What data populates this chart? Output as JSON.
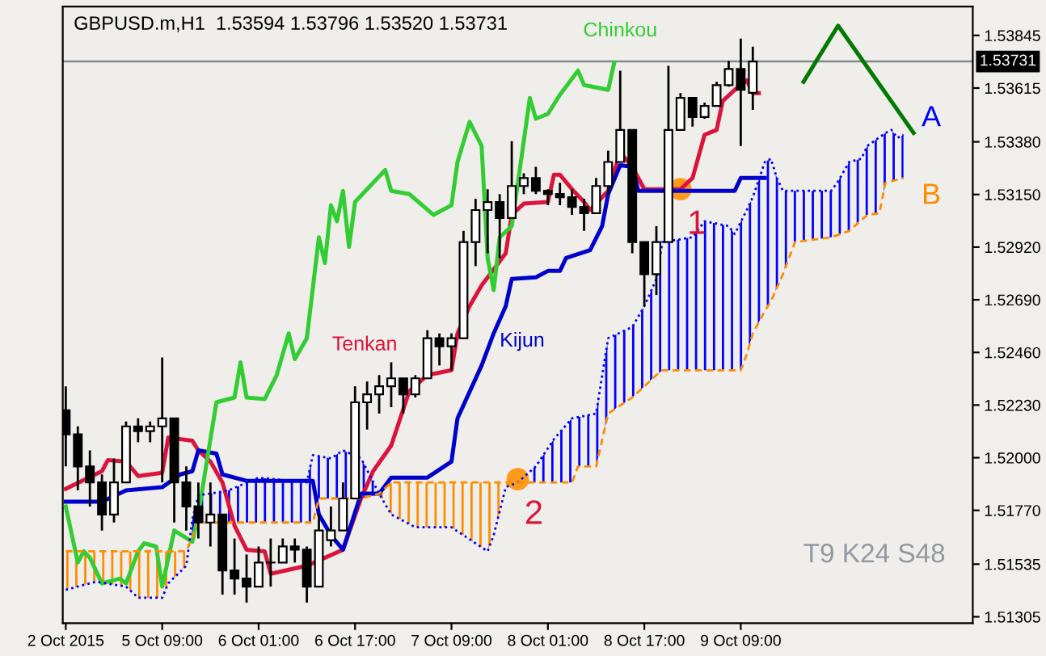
{
  "chart_data": {
    "type": "candlestick",
    "title": "GBPUSD.m,H1  1.53594 1.53796 1.53520 1.53731",
    "categories": [
      "2 Oct 2015",
      null,
      null,
      null,
      null,
      null,
      null,
      null,
      null,
      null,
      null,
      null,
      null,
      null,
      null,
      null,
      "5 Oct 09:00",
      null,
      null,
      null,
      null,
      null,
      null,
      null,
      null,
      null,
      null,
      null,
      null,
      null,
      null,
      null,
      "6 Oct 01:00",
      null,
      null,
      null,
      null,
      null,
      null,
      null,
      null,
      null,
      null,
      null,
      null,
      null,
      null,
      null,
      "6 Oct 17:00",
      null,
      null,
      null,
      null,
      null,
      null,
      null,
      null,
      null,
      null,
      null,
      null,
      null,
      null,
      null,
      "7 Oct 09:00",
      null,
      null,
      null,
      null,
      null,
      null,
      null,
      null,
      null,
      null,
      null,
      null,
      null,
      null,
      null,
      "8 Oct 01:00",
      null,
      null,
      null,
      null,
      null,
      null,
      null,
      null,
      null,
      null,
      null,
      null,
      null,
      null,
      null,
      "8 Oct 17:00",
      null,
      null,
      null,
      null,
      null,
      null,
      null,
      null,
      null,
      null,
      null,
      null,
      null,
      null,
      null,
      "9 Oct 09:00",
      null,
      null,
      null,
      null,
      null,
      null,
      null,
      null,
      null,
      null,
      null,
      null,
      null,
      null,
      null,
      null,
      null,
      null,
      null,
      null,
      null,
      null,
      null,
      null,
      null,
      null,
      null,
      null,
      null,
      null,
      null,
      null,
      null,
      null,
      null,
      null,
      null,
      null
    ],
    "ohlc": [
      [
        1.52207,
        1.52312,
        1.51962,
        1.52102
      ],
      null,
      [
        1.52102,
        1.52137,
        1.51857,
        1.51962
      ],
      null,
      [
        1.51962,
        1.52032,
        1.51787,
        1.51892
      ],
      null,
      [
        1.51892,
        1.51927,
        1.51682,
        1.51752
      ],
      null,
      [
        1.51752,
        1.51997,
        1.51717,
        1.51892
      ],
      null,
      [
        1.51892,
        1.52158,
        1.51892,
        1.52137
      ],
      null,
      [
        1.52137,
        1.52172,
        1.52067,
        1.52116
      ],
      null,
      [
        1.52116,
        1.52158,
        1.52067,
        1.52137
      ],
      null,
      [
        1.52137,
        1.52438,
        1.51892,
        1.52172
      ],
      null,
      [
        1.52172,
        1.52172,
        1.51717,
        1.51892
      ],
      null,
      [
        1.51892,
        1.51962,
        1.51682,
        1.51787
      ],
      null,
      [
        1.51787,
        1.51892,
        1.51647,
        1.51717
      ],
      null,
      [
        1.51717,
        1.51892,
        1.51612,
        1.51752
      ],
      null,
      [
        1.51752,
        1.51752,
        1.51402,
        1.51507
      ],
      null,
      [
        1.51507,
        1.51647,
        1.51402,
        1.51472
      ],
      null,
      [
        1.51472,
        1.51577,
        1.51367,
        1.51437
      ],
      null,
      [
        1.51437,
        1.51612,
        1.51437,
        1.51542
      ],
      null,
      [
        1.51542,
        1.51647,
        1.51437,
        1.51542
      ],
      null,
      [
        1.51542,
        1.51647,
        1.51542,
        1.51612
      ],
      null,
      [
        1.51612,
        1.51647,
        1.51542,
        1.51598
      ],
      null,
      [
        1.51598,
        1.51612,
        1.51367,
        1.51437
      ],
      null,
      [
        1.51437,
        1.51752,
        1.51437,
        1.51682
      ],
      null,
      [
        1.5164,
        1.51787,
        1.51612,
        1.51682
      ],
      null,
      [
        1.51682,
        1.51892,
        1.51682,
        1.51822
      ],
      null,
      [
        1.51822,
        1.52312,
        1.51822,
        1.52242
      ],
      null,
      [
        1.52242,
        1.52333,
        1.52123,
        1.52277
      ],
      null,
      [
        1.52277,
        1.52361,
        1.52193,
        1.52312
      ],
      null,
      [
        1.52312,
        1.52417,
        1.52221,
        1.52347
      ],
      null,
      [
        1.52347,
        1.52347,
        1.52193,
        1.52277
      ],
      null,
      [
        1.52277,
        1.52361,
        1.52263,
        1.52347
      ],
      null,
      [
        1.52347,
        1.52557,
        1.52347,
        1.52522
      ],
      null,
      [
        1.52522,
        1.52543,
        1.52403,
        1.52487
      ],
      null,
      [
        1.52487,
        1.52543,
        1.52382,
        1.52522
      ],
      null,
      [
        1.52522,
        1.52991,
        1.52522,
        1.52942
      ],
      null,
      [
        1.52942,
        1.53131,
        1.52837,
        1.53082
      ],
      null,
      [
        1.53082,
        1.53173,
        1.52893,
        1.53117
      ],
      null,
      [
        1.53117,
        1.53152,
        1.52872,
        1.53047
      ],
      null,
      [
        1.53047,
        1.53383,
        1.53047,
        1.53187
      ],
      null,
      [
        1.53187,
        1.53243,
        1.53152,
        1.53222
      ],
      null,
      [
        1.53222,
        1.53271,
        1.53152,
        1.53166
      ],
      null,
      [
        1.53166,
        1.53173,
        1.53103,
        1.53152
      ],
      null,
      [
        1.53152,
        1.53201,
        1.53103,
        1.53138
      ],
      null,
      [
        1.53138,
        1.53173,
        1.53061,
        1.53096
      ],
      null,
      [
        1.53096,
        1.53131,
        1.52991,
        1.53068
      ],
      null,
      [
        1.53068,
        1.53222,
        1.53068,
        1.53187
      ],
      null,
      [
        1.53187,
        1.53341,
        1.53152,
        1.53292
      ],
      null,
      [
        1.53292,
        1.53691,
        1.53292,
        1.53432
      ],
      null,
      [
        1.53432,
        1.53432,
        1.52893,
        1.52942
      ],
      null,
      [
        1.52942,
        1.52942,
        1.52662,
        1.52802
      ],
      null,
      [
        1.52802,
        1.53012,
        1.52711,
        1.52942
      ],
      null,
      [
        1.52942,
        1.53712,
        1.52942,
        1.53432
      ],
      null,
      [
        1.53432,
        1.53593,
        1.53432,
        1.53572
      ],
      null,
      [
        1.53572,
        1.53572,
        1.53446,
        1.53488
      ],
      null,
      [
        1.53488,
        1.53551,
        1.53481,
        1.53537
      ],
      null,
      [
        1.53537,
        1.53642,
        1.53537,
        1.53628
      ],
      null,
      [
        1.53628,
        1.53733,
        1.53621,
        1.53698
      ],
      null,
      [
        1.53698,
        1.53831,
        1.53362,
        1.53607
      ],
      null,
      [
        1.53594,
        1.53796,
        1.5352,
        1.53731
      ],
      null,
      null,
      null,
      null,
      null,
      null,
      null,
      null,
      null,
      null,
      null,
      null,
      null,
      null,
      null,
      null,
      null,
      null,
      null,
      null,
      null,
      null,
      null,
      null,
      null,
      null,
      null,
      null,
      null,
      null,
      null,
      null,
      null,
      null,
      null,
      null
    ],
    "color": "#000000",
    "series": [
      {
        "name": "Tenkan",
        "type": "line",
        "color": "#dc143c",
        "line_style": "solid",
        "values": [
          1.51864,
          null,
          null,
          null,
          null,
          null,
          1.51941,
          1.5199,
          null,
          null,
          1.51983,
          null,
          1.5192,
          null,
          null,
          null,
          1.51934,
          1.52088,
          null,
          null,
          null,
          1.52074,
          1.52032,
          null,
          1.51983,
          null,
          1.51892,
          null,
          1.51703,
          null,
          1.51598,
          null,
          null,
          1.51591,
          1.51493,
          null,
          null,
          null,
          null,
          null,
          1.51528,
          null,
          null,
          1.51563,
          null,
          null,
          1.51598,
          null,
          null,
          1.51822,
          null,
          1.51941,
          null,
          null,
          1.52053,
          null,
          null,
          1.52291,
          null,
          null,
          1.52361,
          null,
          null,
          null,
          1.52382,
          1.52543,
          null,
          1.52662,
          null,
          1.52753,
          null,
          1.52823,
          null,
          1.52893,
          1.53061,
          null,
          1.5311,
          null,
          null,
          null,
          1.53117,
          1.53236,
          1.53236,
          null,
          1.53173,
          null,
          1.53117,
          1.53082,
          null,
          null,
          1.53166,
          null,
          1.53334,
          null,
          1.53271,
          null,
          1.53173,
          null,
          null,
          null,
          null,
          null,
          1.53173,
          null,
          1.53222,
          null,
          1.53411,
          null,
          1.53432,
          1.53558,
          null,
          1.53607,
          null,
          1.53649,
          1.53593,
          1.53593,
          null,
          null,
          null,
          null,
          null,
          null,
          null,
          null,
          null,
          null,
          null,
          null,
          null,
          null,
          null,
          null,
          null,
          null,
          null,
          null,
          null,
          null,
          null,
          null,
          null,
          null,
          null,
          null,
          null,
          null,
          null,
          null,
          null,
          null,
          null
        ]
      },
      {
        "name": "Kijun",
        "type": "line",
        "color": "#0000cd",
        "line_style": "solid",
        "values": [
          1.51808,
          null,
          null,
          null,
          null,
          null,
          1.51808,
          null,
          null,
          null,
          1.51857,
          null,
          null,
          null,
          null,
          null,
          1.51871,
          null,
          null,
          1.51927,
          null,
          1.51941,
          1.52032,
          null,
          null,
          1.52018,
          1.51927,
          null,
          null,
          null,
          1.51899,
          null,
          null,
          null,
          null,
          null,
          null,
          null,
          null,
          null,
          null,
          1.51899,
          1.51752,
          null,
          1.51661,
          null,
          1.51598,
          null,
          null,
          1.51843,
          null,
          null,
          1.51843,
          null,
          1.51913,
          null,
          null,
          null,
          null,
          null,
          1.51913,
          null,
          null,
          null,
          1.51983,
          1.52172,
          null,
          null,
          null,
          1.52403,
          null,
          1.52543,
          null,
          1.52662,
          1.52781,
          null,
          null,
          null,
          1.52788,
          null,
          1.52816,
          null,
          1.52816,
          1.52872,
          null,
          null,
          null,
          1.52907,
          null,
          1.53012,
          1.53152,
          null,
          1.53278,
          null,
          1.53271,
          1.53166,
          null,
          null,
          null,
          null,
          null,
          null,
          null,
          null,
          null,
          null,
          null,
          null,
          null,
          null,
          null,
          1.53166,
          1.53222,
          null,
          null,
          null,
          1.53222,
          null,
          null,
          null,
          null,
          null,
          null,
          null,
          null,
          null,
          null,
          null,
          null,
          null,
          null,
          null,
          null,
          null,
          null,
          null,
          null,
          null,
          null,
          null,
          null,
          null,
          null,
          null,
          null,
          null,
          null,
          null,
          null,
          null,
          null
        ]
      },
      {
        "name": "Chinkou",
        "type": "line",
        "color": "#32cd32",
        "line_style": "solid",
        "values": [
          1.51787,
          null,
          1.51542,
          1.51591,
          1.51563,
          null,
          1.51451,
          null,
          null,
          1.51472,
          1.51451,
          null,
          1.51591,
          1.51626,
          null,
          1.51612,
          1.51437,
          null,
          1.51682,
          null,
          null,
          1.51633,
          1.51752,
          null,
          1.52081,
          1.52242,
          null,
          null,
          1.52263,
          1.52417,
          1.52263,
          null,
          null,
          1.52256,
          null,
          1.52361,
          null,
          1.52543,
          1.52431,
          null,
          1.52522,
          null,
          1.52963,
          1.52851,
          1.53103,
          1.53033,
          1.53166,
          1.52921,
          1.53117,
          null,
          null,
          null,
          null,
          1.53257,
          1.53166,
          null,
          null,
          1.53152,
          null,
          null,
          null,
          1.53061,
          null,
          null,
          1.53103,
          1.53292,
          null,
          1.53467,
          null,
          1.53362,
          1.52872,
          1.52732,
          1.52963,
          null,
          1.53012,
          null,
          1.53383,
          1.53572,
          1.53481,
          null,
          1.53502,
          null,
          1.53586,
          null,
          null,
          1.53691,
          1.53628,
          null,
          null,
          null,
          1.53607,
          1.53726,
          null,
          null,
          null,
          null,
          null,
          null,
          null,
          null,
          null,
          null,
          null,
          null,
          null,
          null,
          null,
          null,
          null,
          null,
          null,
          null,
          null,
          null,
          null,
          null,
          null,
          null,
          null,
          null,
          null,
          null,
          null,
          null,
          null,
          null,
          null,
          null,
          null,
          null,
          null,
          null,
          null,
          null,
          null,
          null,
          null,
          null,
          null,
          null,
          null,
          null,
          null,
          null,
          null,
          null,
          null,
          null,
          null,
          null,
          null
        ]
      },
      {
        "name": "A",
        "type": "line",
        "color": "#0000ff",
        "line_style": "dotted",
        "values": [
          1.51423,
          null,
          null,
          null,
          null,
          1.51458,
          null,
          null,
          null,
          null,
          1.51437,
          null,
          1.51388,
          null,
          null,
          null,
          1.51388,
          1.51451,
          null,
          null,
          1.51528,
          1.51731,
          1.51836,
          null,
          1.51843,
          null,
          null,
          1.51857,
          null,
          null,
          null,
          null,
          1.51913,
          null,
          null,
          null,
          null,
          null,
          null,
          null,
          1.51892,
          1.52011,
          null,
          null,
          1.51997,
          null,
          1.52032,
          null,
          null,
          1.51997,
          null,
          null,
          1.51843,
          null,
          1.51752,
          null,
          null,
          null,
          1.51696,
          null,
          null,
          null,
          null,
          null,
          1.51696,
          null,
          1.51661,
          null,
          null,
          null,
          1.51591,
          1.51661,
          null,
          1.51871,
          null,
          1.51892,
          null,
          null,
          1.51962,
          null,
          null,
          1.52081,
          null,
          null,
          1.52172,
          null,
          null,
          null,
          1.52193,
          null,
          1.52522,
          null,
          null,
          null,
          1.52571,
          null,
          1.52662,
          null,
          1.52781,
          1.52942,
          null,
          null,
          null,
          null,
          1.52963,
          null,
          1.53033,
          null,
          null,
          null,
          1.53012,
          1.52977,
          null,
          1.53082,
          1.53138,
          null,
          1.53292,
          1.53306,
          1.53222,
          1.53166,
          null,
          null,
          null,
          null,
          null,
          null,
          null,
          1.53166,
          1.53201,
          null,
          1.53292,
          null,
          1.53306,
          1.53362,
          null,
          null,
          1.53418,
          1.53432,
          1.53397,
          1.53411,
          null,
          null,
          null,
          null,
          null,
          null,
          null,
          null,
          null,
          null,
          null
        ]
      },
      {
        "name": "B",
        "type": "line",
        "color": "#ff8c00",
        "line_style": "dashed",
        "values": [
          1.51591,
          null,
          null,
          null,
          null,
          null,
          null,
          null,
          null,
          null,
          null,
          null,
          null,
          null,
          null,
          null,
          null,
          null,
          null,
          null,
          1.51591,
          null,
          1.51717,
          null,
          null,
          null,
          null,
          null,
          null,
          null,
          null,
          null,
          null,
          null,
          null,
          null,
          null,
          null,
          null,
          null,
          null,
          1.51717,
          1.51822,
          null,
          null,
          null,
          null,
          null,
          null,
          1.51822,
          null,
          null,
          1.51843,
          null,
          1.51892,
          null,
          null,
          null,
          null,
          null,
          null,
          null,
          null,
          null,
          null,
          null,
          null,
          null,
          null,
          null,
          null,
          null,
          null,
          null,
          null,
          null,
          null,
          null,
          null,
          null,
          null,
          null,
          null,
          null,
          1.51892,
          1.51962,
          null,
          null,
          1.51962,
          null,
          1.52193,
          null,
          1.52228,
          null,
          1.52263,
          null,
          null,
          null,
          1.52361,
          1.52382,
          null,
          null,
          null,
          null,
          null,
          null,
          null,
          null,
          null,
          null,
          null,
          null,
          1.52382,
          1.52452,
          1.52543,
          null,
          1.52641,
          1.52683,
          null,
          1.52802,
          null,
          1.52942,
          null,
          null,
          null,
          null,
          null,
          1.52963,
          null,
          null,
          1.52991,
          null,
          null,
          1.53061,
          null,
          1.53068,
          1.53201,
          null,
          null,
          1.53222,
          null,
          null,
          null,
          null,
          null,
          null,
          null,
          null,
          null,
          null,
          null
        ]
      },
      {
        "type": "scatter",
        "color": "#ff9a1a",
        "marker": "circle",
        "values": [
          null,
          null,
          null,
          null,
          null,
          null,
          null,
          null,
          null,
          null,
          null,
          null,
          null,
          null,
          null,
          null,
          null,
          null,
          null,
          null,
          null,
          null,
          null,
          null,
          null,
          null,
          null,
          null,
          null,
          null,
          null,
          null,
          null,
          null,
          null,
          null,
          null,
          null,
          null,
          null,
          null,
          null,
          null,
          null,
          null,
          null,
          null,
          null,
          null,
          null,
          null,
          null,
          null,
          null,
          null,
          null,
          null,
          null,
          null,
          null,
          null,
          null,
          null,
          null,
          null,
          null,
          null,
          null,
          null,
          null,
          null,
          null,
          null,
          null,
          null,
          1.51906,
          null,
          null,
          null,
          null,
          null,
          null,
          null,
          null,
          null,
          null,
          null,
          null,
          null,
          null,
          null,
          null,
          null,
          null,
          null,
          null,
          null,
          null,
          null,
          null,
          null,
          null,
          1.53173,
          null,
          null,
          null,
          null,
          null,
          null,
          null,
          null,
          null,
          null,
          null,
          null,
          null,
          null,
          null,
          null,
          null,
          null,
          null,
          null,
          null,
          null,
          null,
          null,
          null,
          null,
          null,
          null,
          null,
          null,
          null,
          null,
          null,
          null,
          null,
          null,
          null,
          null,
          null,
          null,
          null,
          null,
          null,
          null,
          null,
          null,
          null,
          null
        ]
      }
    ],
    "ylim": [
      1.51277,
      1.53971
    ],
    "yticks": [
      {
        "value": 1.51305,
        "label": "1.51305"
      },
      {
        "value": 1.51535,
        "label": "1.51535"
      },
      {
        "value": 1.5177,
        "label": "1.51770"
      },
      {
        "value": 1.52,
        "label": "1.52000"
      },
      {
        "value": 1.5223,
        "label": "1.52230"
      },
      {
        "value": 1.5246,
        "label": "1.52460"
      },
      {
        "value": 1.5269,
        "label": "1.52690"
      },
      {
        "value": 1.5292,
        "label": "1.52920"
      },
      {
        "value": 1.5315,
        "label": "1.53150"
      },
      {
        "value": 1.5338,
        "label": "1.53380"
      },
      {
        "value": 1.53615,
        "label": "1.53615"
      },
      {
        "value": 1.53845,
        "label": "1.53845"
      }
    ],
    "ref_lines": [
      {
        "axis": "y",
        "value": 1.53731,
        "label": "1.53731",
        "color": "#808890"
      }
    ],
    "annotations": [
      "1",
      "2",
      "T9 K24 S48"
    ],
    "grid": false,
    "legend": false
  }
}
